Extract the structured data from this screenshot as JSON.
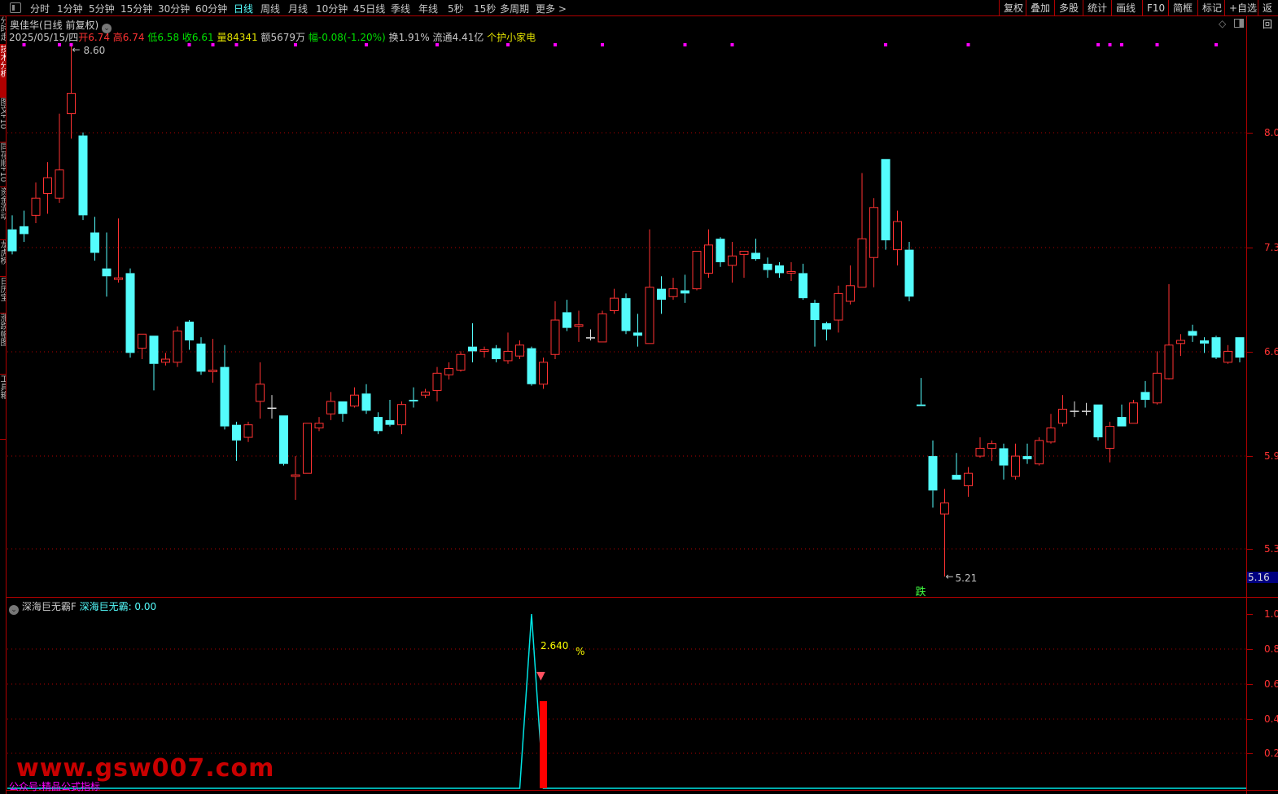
{
  "toolbar": {
    "periods": [
      "分时",
      "1分钟",
      "5分钟",
      "15分钟",
      "30分钟",
      "60分钟",
      "日线",
      "周线",
      "月线",
      "10分钟",
      "45日线",
      "季线",
      "年线",
      "5秒",
      "15秒",
      "多周期",
      "更多 >"
    ],
    "active_period": "日线",
    "buttons": [
      "复权",
      "叠加",
      "多股",
      "统计",
      "画线",
      "F10",
      "简框",
      "标记",
      "+自选",
      "返回"
    ]
  },
  "left_tabs": [
    "分时走势",
    "技术分析",
    "图文F10",
    "同花顺F10",
    "资金流动",
    "龙虎榜",
    "日历宝",
    "涨跌幅图",
    "工具箱"
  ],
  "stock": {
    "title": "奥佳华(日线 前复权)",
    "date": "2025/05/15/四",
    "open_label": "开",
    "open": "6.74",
    "high_label": "高",
    "high": "6.74",
    "low_label": "低",
    "low": "6.58",
    "close_label": "收",
    "close": "6.61",
    "vol_label": "量",
    "vol": "84341",
    "amount": "额5679万",
    "change": "幅-0.08(-1.20%)",
    "turnover": "换1.91%",
    "float": "流通4.41亿",
    "sector": "个护小家电"
  },
  "colors": {
    "up": "#ff3232",
    "down": "#54fcfc",
    "grid": "#b00000",
    "signal": "#ff00ff",
    "indicator_line": "#00e5e5",
    "indicator_bar": "#ff0000"
  },
  "chart_data": [
    {
      "type": "candlestick",
      "ohlc_order": [
        "open",
        "high",
        "low",
        "close"
      ],
      "candles": [
        [
          7.43,
          7.52,
          7.27,
          7.29
        ],
        [
          7.45,
          7.55,
          7.35,
          7.4
        ],
        [
          7.52,
          7.73,
          7.47,
          7.63
        ],
        [
          7.66,
          7.86,
          7.53,
          7.76
        ],
        [
          7.63,
          8.17,
          7.6,
          7.81
        ],
        [
          8.17,
          8.6,
          8.01,
          8.3
        ],
        [
          8.03,
          8.05,
          7.49,
          7.52
        ],
        [
          7.41,
          7.51,
          7.23,
          7.28
        ],
        [
          7.18,
          7.41,
          7.0,
          7.13
        ],
        [
          7.11,
          7.5,
          7.09,
          7.12
        ],
        [
          7.15,
          7.18,
          6.61,
          6.64
        ],
        [
          6.67,
          6.76,
          6.6,
          6.76
        ],
        [
          6.75,
          6.75,
          6.4,
          6.57
        ],
        [
          6.58,
          6.64,
          6.56,
          6.6
        ],
        [
          6.58,
          6.81,
          6.55,
          6.78
        ],
        [
          6.84,
          6.85,
          6.66,
          6.72
        ],
        [
          6.7,
          6.74,
          6.5,
          6.52
        ],
        [
          6.52,
          6.73,
          6.45,
          6.53
        ],
        [
          6.55,
          6.69,
          6.15,
          6.17
        ],
        [
          6.18,
          6.2,
          5.95,
          6.08
        ],
        [
          6.1,
          6.2,
          6.07,
          6.18
        ],
        [
          6.33,
          6.58,
          6.22,
          6.44
        ],
        [
          6.29,
          6.37,
          6.22,
          6.29
        ],
        [
          6.24,
          6.24,
          5.92,
          5.93
        ],
        [
          5.85,
          5.98,
          5.7,
          5.86
        ],
        [
          5.87,
          6.19,
          5.87,
          6.19
        ],
        [
          6.16,
          6.23,
          6.14,
          6.19
        ],
        [
          6.25,
          6.39,
          6.21,
          6.33
        ],
        [
          6.33,
          6.33,
          6.2,
          6.25
        ],
        [
          6.3,
          6.42,
          6.29,
          6.37
        ],
        [
          6.38,
          6.44,
          6.25,
          6.27
        ],
        [
          6.23,
          6.26,
          6.12,
          6.14
        ],
        [
          6.21,
          6.34,
          6.17,
          6.18
        ],
        [
          6.18,
          6.33,
          6.12,
          6.31
        ],
        [
          6.34,
          6.42,
          6.29,
          6.33
        ],
        [
          6.37,
          6.41,
          6.35,
          6.39
        ],
        [
          6.4,
          6.55,
          6.33,
          6.51
        ],
        [
          6.5,
          6.58,
          6.47,
          6.54
        ],
        [
          6.53,
          6.65,
          6.52,
          6.63
        ],
        [
          6.68,
          6.83,
          6.58,
          6.65
        ],
        [
          6.65,
          6.68,
          6.61,
          6.66
        ],
        [
          6.67,
          6.69,
          6.58,
          6.6
        ],
        [
          6.59,
          6.77,
          6.57,
          6.65
        ],
        [
          6.62,
          6.72,
          6.6,
          6.69
        ],
        [
          6.67,
          6.68,
          6.43,
          6.44
        ],
        [
          6.44,
          6.61,
          6.41,
          6.58
        ],
        [
          6.63,
          6.97,
          6.6,
          6.85
        ],
        [
          6.9,
          6.98,
          6.78,
          6.8
        ],
        [
          6.81,
          6.91,
          6.71,
          6.82
        ],
        [
          6.74,
          6.79,
          6.72,
          6.74
        ],
        [
          6.71,
          6.91,
          6.71,
          6.89
        ],
        [
          6.91,
          7.05,
          6.89,
          6.99
        ],
        [
          6.99,
          7.02,
          6.76,
          6.78
        ],
        [
          6.77,
          6.89,
          6.68,
          6.75
        ],
        [
          6.7,
          7.43,
          6.7,
          7.06
        ],
        [
          7.05,
          7.13,
          6.89,
          6.98
        ],
        [
          7.0,
          7.12,
          6.98,
          7.05
        ],
        [
          7.04,
          7.14,
          6.96,
          7.02
        ],
        [
          7.05,
          7.29,
          7.04,
          7.29
        ],
        [
          7.15,
          7.43,
          7.12,
          7.33
        ],
        [
          7.37,
          7.38,
          7.19,
          7.22
        ],
        [
          7.2,
          7.35,
          7.09,
          7.26
        ],
        [
          7.27,
          7.29,
          7.12,
          7.29
        ],
        [
          7.28,
          7.37,
          7.23,
          7.24
        ],
        [
          7.21,
          7.25,
          7.12,
          7.17
        ],
        [
          7.2,
          7.22,
          7.12,
          7.15
        ],
        [
          7.15,
          7.22,
          7.1,
          7.16
        ],
        [
          7.15,
          7.21,
          6.98,
          6.99
        ],
        [
          6.96,
          6.98,
          6.68,
          6.85
        ],
        [
          6.83,
          6.84,
          6.72,
          6.79
        ],
        [
          6.85,
          7.07,
          6.77,
          7.02
        ],
        [
          6.97,
          7.2,
          6.95,
          7.07
        ],
        [
          7.06,
          7.79,
          7.06,
          7.37
        ],
        [
          7.25,
          7.63,
          7.06,
          7.57
        ],
        [
          7.88,
          7.88,
          7.3,
          7.36
        ],
        [
          7.3,
          7.55,
          7.2,
          7.48
        ],
        [
          7.3,
          7.35,
          6.97,
          7.0
        ],
        [
          6.31,
          6.48,
          6.3,
          6.3
        ],
        [
          5.98,
          6.08,
          5.65,
          5.76
        ],
        [
          5.61,
          5.77,
          5.21,
          5.68
        ],
        [
          5.86,
          6.0,
          5.83,
          5.83
        ],
        [
          5.79,
          5.91,
          5.72,
          5.87
        ],
        [
          5.98,
          6.1,
          5.97,
          6.03
        ],
        [
          6.03,
          6.08,
          5.95,
          6.06
        ],
        [
          6.03,
          6.06,
          5.83,
          5.92
        ],
        [
          5.85,
          6.06,
          5.83,
          5.98
        ],
        [
          5.98,
          6.06,
          5.93,
          5.96
        ],
        [
          5.93,
          6.1,
          5.92,
          6.08
        ],
        [
          6.07,
          6.25,
          6.06,
          6.16
        ],
        [
          6.19,
          6.37,
          6.17,
          6.28
        ],
        [
          6.27,
          6.33,
          6.23,
          6.27
        ],
        [
          6.27,
          6.32,
          6.24,
          6.27
        ],
        [
          6.31,
          6.31,
          6.08,
          6.1
        ],
        [
          6.03,
          6.2,
          5.94,
          6.17
        ],
        [
          6.23,
          6.31,
          6.17,
          6.17
        ],
        [
          6.19,
          6.34,
          6.19,
          6.32
        ],
        [
          6.39,
          6.46,
          6.29,
          6.34
        ],
        [
          6.32,
          6.65,
          6.31,
          6.51
        ],
        [
          6.475,
          7.08,
          6.47,
          6.69
        ],
        [
          6.7,
          6.76,
          6.62,
          6.72
        ],
        [
          6.78,
          6.82,
          6.71,
          6.75
        ],
        [
          6.72,
          6.74,
          6.64,
          6.7
        ],
        [
          6.74,
          6.75,
          6.6,
          6.61
        ],
        [
          6.58,
          6.69,
          6.57,
          6.65
        ],
        [
          6.74,
          6.74,
          6.58,
          6.61
        ]
      ],
      "y_ticks": [
        "8.0",
        "7.3",
        "6.6",
        "5.9",
        "5.3"
      ],
      "annotations": [
        {
          "candle": 5,
          "text": "8.60"
        },
        {
          "candle": 79,
          "text": "5.21"
        },
        {
          "candle": 77,
          "text": "跌"
        }
      ],
      "signal_marker_candles": [
        1,
        4,
        5,
        15,
        17,
        19,
        24,
        30,
        36,
        42,
        46,
        50,
        57,
        61,
        74,
        81,
        92,
        93,
        94,
        97,
        102
      ],
      "cursor_price": "5.16"
    },
    {
      "type": "line+bar",
      "title": "深海巨无霸F",
      "series_label": "深海巨无霸: 0.00",
      "line_values_nonzero": {
        "44": 1.0
      },
      "bar": {
        "candle": 45,
        "value": 0.5
      },
      "bar_label": "2.640",
      "bar_unit": "%",
      "y_ticks": [
        "1.0",
        "0.8",
        "0.6",
        "0.4",
        "0.2"
      ],
      "ylim": [
        0,
        1.0
      ],
      "count": 105
    }
  ],
  "watermark": {
    "url": "www.gsw007.com",
    "note": "公众号:精品公式指标"
  }
}
